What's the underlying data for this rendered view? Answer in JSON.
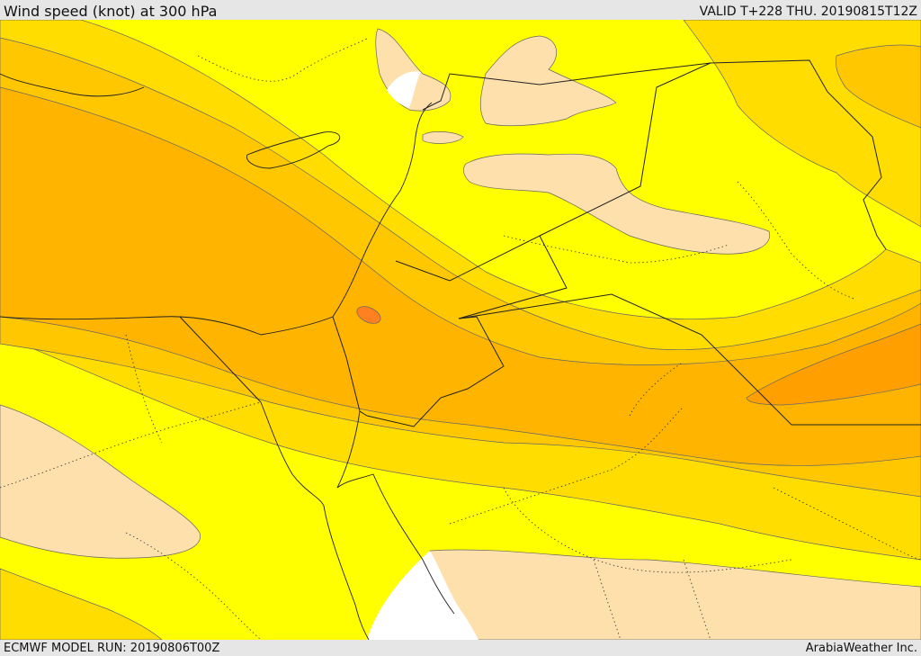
{
  "header": {
    "title": "Wind speed (knot) at 300 hPa",
    "valid": "VALID T+228 THU. 20190815T12Z"
  },
  "footer": {
    "model_run": "ECMWF MODEL RUN: 20190806T00Z",
    "provider": "ArabiaWeather Inc."
  },
  "map": {
    "variable": "wind speed",
    "level": "300 hPa",
    "units": "knot",
    "fill_colors": {
      "background_band": "#ffff00",
      "light": "#fee0ac",
      "band_1": "#ffdd00",
      "band_2": "#ffc700",
      "band_3": "#ffb400",
      "band_4": "#ff9f00",
      "peak": "#ff8020",
      "sea_or_no_data": "#ffffff"
    }
  }
}
